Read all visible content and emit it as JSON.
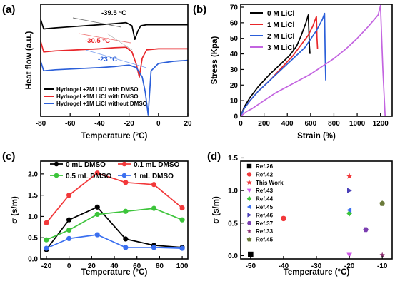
{
  "panels": {
    "a": "(a)",
    "b": "(b)",
    "c": "(c)",
    "d": "(d)"
  },
  "chart_data": [
    {
      "panel": "a",
      "type": "line",
      "xlabel": "Temperature (°C)",
      "ylabel": "Heat flow (a.u.)",
      "xlim": [
        -80,
        20
      ],
      "x_ticks": [
        "-80",
        "-60",
        "-40",
        "-20",
        "0",
        "20"
      ],
      "y_ticks_labeled": false,
      "legend": [
        "Hydrogel +2M LiCl with DMSO",
        "Hydrogel +1M LiCl with DMSO",
        "Hydrogel +1M LiCl without DMSO"
      ],
      "annotations": [
        "-39.5 °C",
        "-30.5 °C",
        "-23 °C"
      ],
      "series": [
        {
          "name": "Hydrogel +2M LiCl with DMSO",
          "color": "#000000",
          "x": [
            -80,
            -78,
            -70,
            -55,
            -40,
            -30,
            -22,
            -18,
            -16,
            -14,
            -12,
            -8,
            0,
            10,
            20
          ],
          "y": [
            91,
            82,
            83,
            84.5,
            86,
            87,
            88,
            85,
            72,
            80,
            85,
            86,
            86,
            86,
            86
          ]
        },
        {
          "name": "Hydrogel +1M LiCl with DMSO",
          "color": "#e8262a",
          "x": [
            -80,
            -78,
            -70,
            -55,
            -40,
            -30,
            -22,
            -18,
            -15,
            -13,
            -11,
            -8,
            0,
            10,
            20
          ],
          "y": [
            70,
            60,
            61,
            62,
            63,
            64,
            64.5,
            60,
            48,
            36,
            54,
            62,
            63,
            63,
            63
          ]
        },
        {
          "name": "Hydrogel +1M LiCl without DMSO",
          "color": "#2b5fd9",
          "x": [
            -80,
            -78,
            -70,
            -55,
            -40,
            -30,
            -20,
            -15,
            -11,
            -9,
            -7,
            -5,
            0,
            10,
            20
          ],
          "y": [
            51,
            42,
            43,
            44,
            45,
            46,
            47.5,
            45,
            36,
            22,
            0,
            42,
            49,
            51,
            52
          ]
        }
      ]
    },
    {
      "panel": "b",
      "type": "line",
      "xlabel": "Strain (%)",
      "ylabel": "Stress (Kpa)",
      "xlim": [
        0,
        1300
      ],
      "ylim": [
        0,
        70
      ],
      "x_ticks": [
        "0",
        "200",
        "400",
        "600",
        "800",
        "1000",
        "1200"
      ],
      "y_ticks": [
        "0",
        "10",
        "20",
        "30",
        "40",
        "50",
        "60",
        "70"
      ],
      "legend": [
        "0 M LiCl",
        "1 M LiCl",
        "2 M LiCl",
        "3 M LiCl"
      ],
      "series": [
        {
          "name": "0 M LiCl",
          "color": "#000000",
          "x": [
            0,
            30,
            80,
            150,
            250,
            350,
            420,
            480,
            520,
            560,
            580,
            585,
            590,
            595
          ],
          "y": [
            0,
            6,
            12,
            19,
            27,
            34,
            39,
            45,
            52,
            60,
            65,
            55,
            45,
            40
          ]
        },
        {
          "name": "1 M LiCl",
          "color": "#e8262a",
          "x": [
            0,
            30,
            80,
            150,
            250,
            350,
            450,
            520,
            580,
            620,
            650,
            655,
            660
          ],
          "y": [
            0,
            5,
            10,
            16,
            23,
            31,
            39,
            46,
            52,
            58,
            64,
            50,
            43
          ]
        },
        {
          "name": "2 M LiCl",
          "color": "#2b5fd9",
          "x": [
            0,
            30,
            80,
            150,
            250,
            350,
            450,
            550,
            650,
            700,
            720,
            725,
            730
          ],
          "y": [
            0,
            5,
            10,
            16,
            23,
            30,
            37,
            44,
            55,
            62,
            66,
            40,
            23
          ]
        },
        {
          "name": "3 M LiCl",
          "color": "#c364e0",
          "x": [
            0,
            50,
            100,
            200,
            300,
            400,
            500,
            600,
            700,
            800,
            900,
            1000,
            1100,
            1180,
            1200,
            1220,
            1240
          ],
          "y": [
            0,
            3,
            5,
            10,
            15,
            19,
            23,
            27,
            32,
            37,
            43,
            50,
            58,
            65,
            71,
            30,
            0
          ]
        }
      ]
    },
    {
      "panel": "c",
      "type": "line",
      "xlabel": "Temperature (°C)",
      "ylabel": "σ (s/m)",
      "xlim": [
        -25,
        105
      ],
      "ylim": [
        0.0,
        2.3
      ],
      "x_ticks": [
        "-20",
        "0",
        "20",
        "40",
        "60",
        "80",
        "100"
      ],
      "y_ticks": [
        "0.0",
        "0.5",
        "1.0",
        "1.5",
        "2.0"
      ],
      "legend_labels": [
        "0 mL DMSO",
        "0.1 mL DMSO",
        "0.5 mL DMSO",
        "1 mL DMSO"
      ],
      "categories": [
        -20,
        0,
        25,
        50,
        75,
        100
      ],
      "series": [
        {
          "name": "0 mL DMSO",
          "color": "#000000",
          "values": [
            0.22,
            0.92,
            1.22,
            0.47,
            0.32,
            0.27
          ]
        },
        {
          "name": "0.1 mL DMSO",
          "color": "#f2383a",
          "values": [
            0.85,
            1.5,
            2.02,
            1.8,
            1.75,
            1.2
          ]
        },
        {
          "name": "0.5 mL DMSO",
          "color": "#3cc43a",
          "values": [
            0.45,
            0.68,
            1.05,
            1.12,
            1.19,
            0.92
          ]
        },
        {
          "name": "1 mL DMSO",
          "color": "#3a6ff0",
          "values": [
            0.25,
            0.48,
            0.57,
            0.27,
            0.27,
            0.25
          ]
        }
      ]
    },
    {
      "panel": "d",
      "type": "scatter",
      "xlabel": "Temperature (°C)",
      "ylabel": "σ (s/m)",
      "xlim": [
        -53,
        -7
      ],
      "ylim": [
        -0.05,
        1.45
      ],
      "x_ticks": [
        "-50",
        "-40",
        "-30",
        "-20",
        "-10"
      ],
      "y_ticks": [
        "0.0",
        "0.5",
        "1.0",
        "1.5"
      ],
      "series": [
        {
          "name": "Ref.26",
          "color": "#000000",
          "marker": "square",
          "x": -50,
          "y": 0.02
        },
        {
          "name": "Ref.42",
          "color": "#f2383a",
          "marker": "circle",
          "x": -40,
          "y": 0.57
        },
        {
          "name": "This Work",
          "color": "#f2383a",
          "marker": "star",
          "x": -20,
          "y": 1.22
        },
        {
          "name": "Ref.43",
          "color": "#d05ae8",
          "marker": "triangle-down",
          "x": -20,
          "y": 0.01
        },
        {
          "name": "Ref.44",
          "color": "#3cc43a",
          "marker": "diamond",
          "x": -20,
          "y": 0.65
        },
        {
          "name": "Ref.45",
          "color": "#3a6ff0",
          "marker": "triangle-left",
          "x": -20,
          "y": 0.7
        },
        {
          "name": "Ref.46",
          "color": "#4a3fb8",
          "marker": "triangle-right",
          "x": -20,
          "y": 1.0
        },
        {
          "name": "Ref.37",
          "color": "#7a3db0",
          "marker": "hexagon",
          "x": -15,
          "y": 0.4
        },
        {
          "name": "Ref.33",
          "color": "#8a2b6e",
          "marker": "star-small",
          "x": -10,
          "y": 0.01
        },
        {
          "name": "Ref.45",
          "color": "#6b7a3a",
          "marker": "pentagon",
          "x": -10,
          "y": 0.8
        }
      ]
    }
  ]
}
